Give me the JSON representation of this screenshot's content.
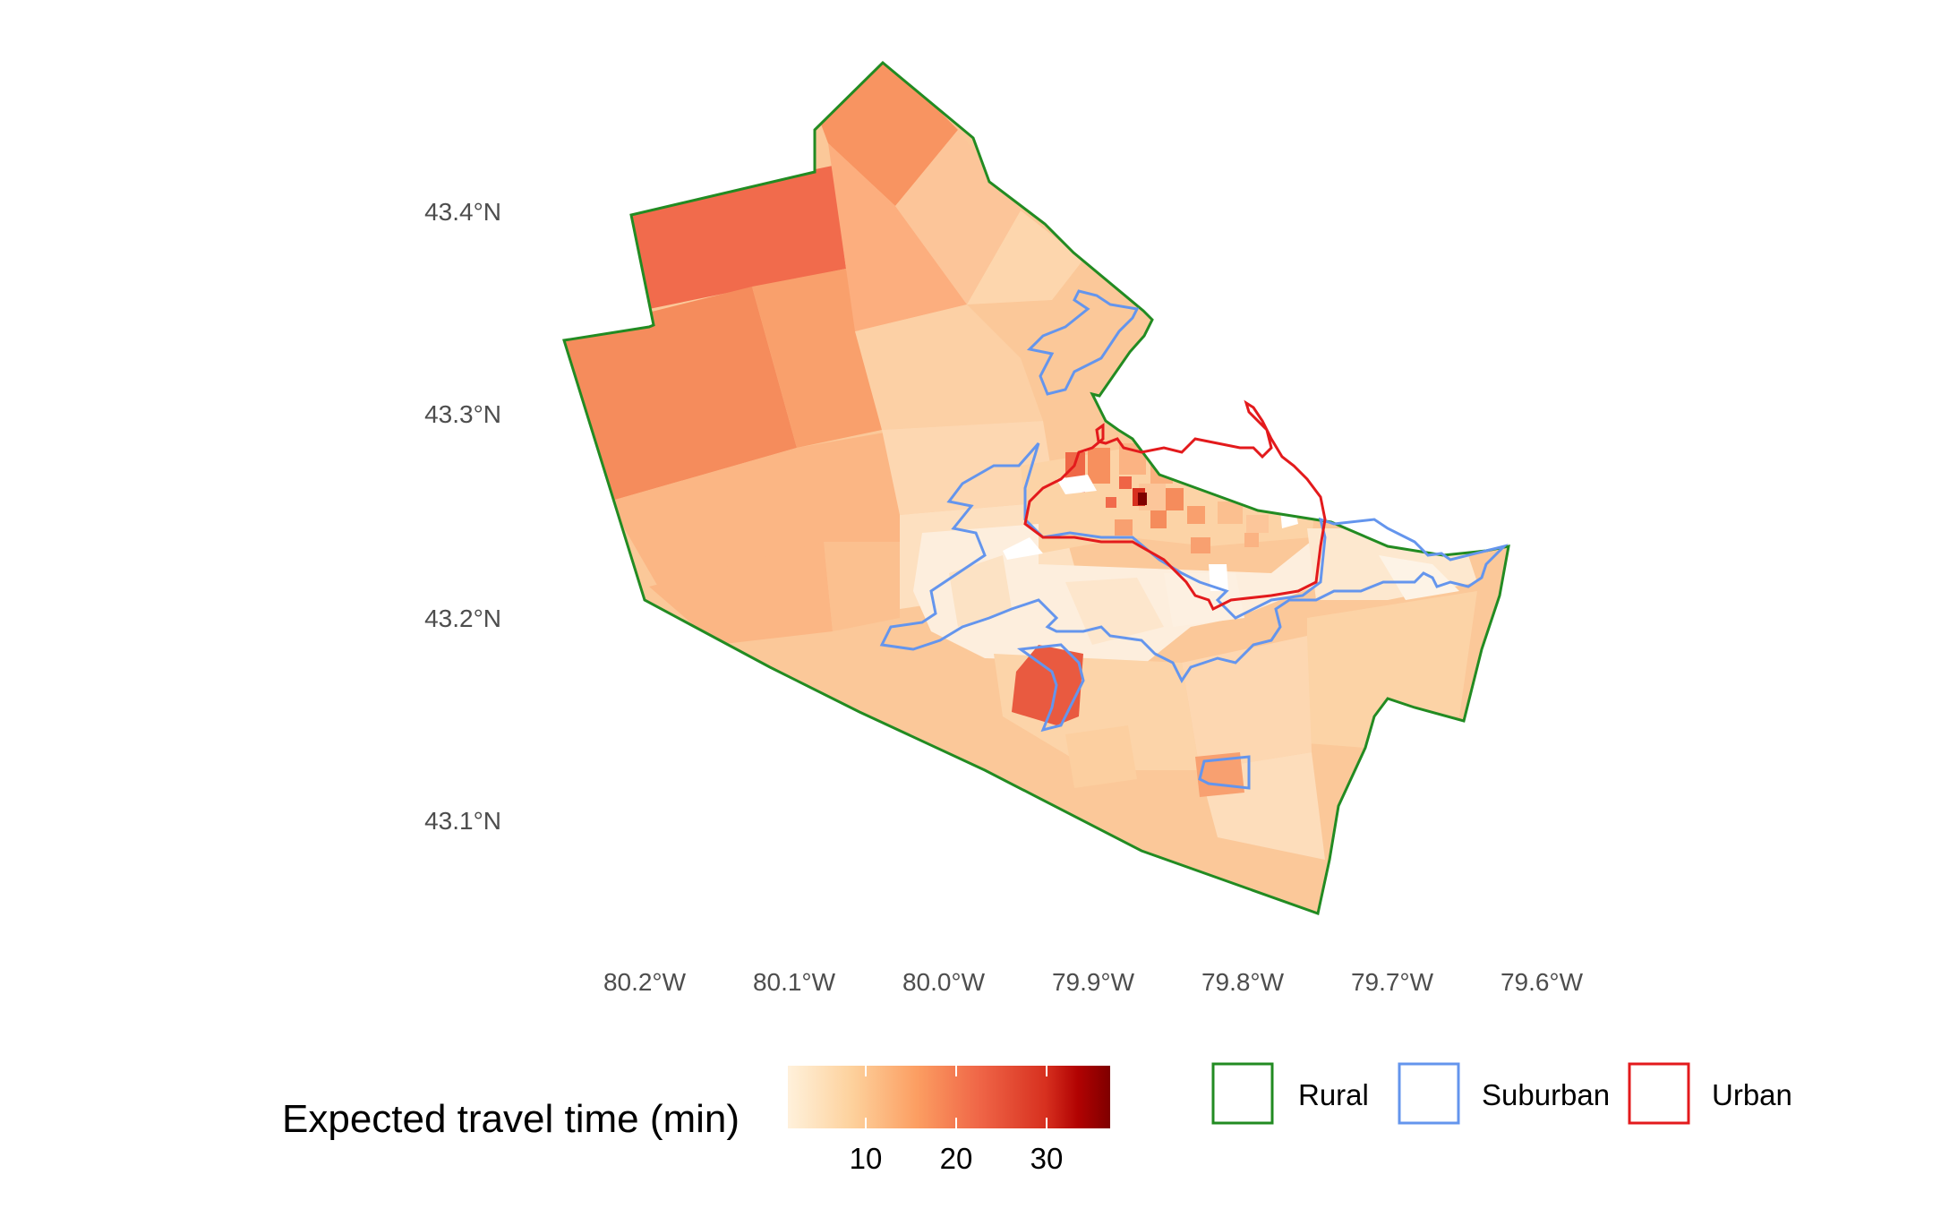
{
  "map": {
    "latitude_labels": [
      "43.4°N",
      "43.3°N",
      "43.2°N",
      "43.1°N"
    ],
    "longitude_labels": [
      "80.2°W",
      "80.1°W",
      "80.0°W",
      "79.9°W",
      "79.8°W",
      "79.7°W",
      "79.6°W"
    ],
    "boundary_colors": {
      "rural": "#228B22",
      "suburban": "#6495ED",
      "urban": "#E31A1C"
    }
  },
  "legend": {
    "colorbar": {
      "title": "Expected travel time (min)",
      "ticks": [
        "10",
        "20",
        "30"
      ],
      "tick_values": [
        10,
        20,
        30
      ],
      "range": [
        3,
        37
      ],
      "colors": [
        "#fff1db",
        "#fdd19c",
        "#fc9e62",
        "#ef6446",
        "#d7301f",
        "#b10202",
        "#7f0000"
      ]
    },
    "boundaries": [
      {
        "label": "Rural",
        "color": "#228B22"
      },
      {
        "label": "Suburban",
        "color": "#6495ED"
      },
      {
        "label": "Urban",
        "color": "#E31A1C"
      }
    ]
  }
}
